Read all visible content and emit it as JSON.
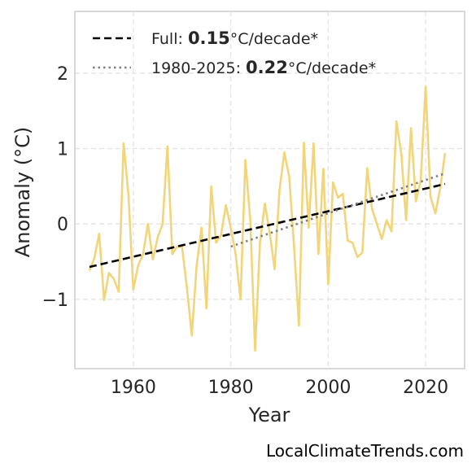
{
  "chart_data": {
    "type": "line",
    "xlabel": "Year",
    "ylabel": "Anomaly (°C)",
    "xlim": [
      1948,
      2028
    ],
    "ylim": [
      -1.92,
      2.82
    ],
    "xticks": [
      1960,
      1980,
      2000,
      2020
    ],
    "yticks": [
      -1,
      0,
      1,
      2
    ],
    "ytick_labels": [
      "−1",
      "0",
      "1",
      "2"
    ],
    "grid": true,
    "legend_placement": "top-left",
    "series": [
      {
        "kind": "data",
        "color": "#f2d57a",
        "x": [
          1951,
          1952,
          1953,
          1954,
          1955,
          1956,
          1957,
          1958,
          1959,
          1960,
          1961,
          1962,
          1963,
          1964,
          1965,
          1966,
          1967,
          1968,
          1969,
          1970,
          1971,
          1972,
          1973,
          1974,
          1975,
          1976,
          1977,
          1978,
          1979,
          1980,
          1981,
          1982,
          1983,
          1984,
          1985,
          1986,
          1987,
          1988,
          1989,
          1990,
          1991,
          1992,
          1993,
          1994,
          1995,
          1996,
          1997,
          1998,
          1999,
          2000,
          2001,
          2002,
          2003,
          2004,
          2005,
          2006,
          2007,
          2008,
          2009,
          2010,
          2011,
          2012,
          2013,
          2014,
          2015,
          2016,
          2017,
          2018,
          2019,
          2020,
          2021,
          2022,
          2023,
          2024
        ],
        "y": [
          -0.62,
          -0.45,
          -0.13,
          -1.01,
          -0.65,
          -0.73,
          -0.9,
          1.07,
          0.38,
          -0.87,
          -0.55,
          -0.4,
          0.0,
          -0.47,
          -0.18,
          0.0,
          1.03,
          -0.4,
          -0.3,
          -0.3,
          -0.85,
          -1.48,
          -0.55,
          -0.05,
          -1.12,
          0.5,
          -0.25,
          -0.15,
          0.25,
          -0.05,
          -0.4,
          -1.0,
          0.85,
          0.05,
          -1.68,
          -0.25,
          0.27,
          -0.12,
          -0.6,
          0.45,
          0.95,
          0.62,
          -0.3,
          -1.35,
          1.08,
          -0.05,
          1.07,
          -0.4,
          0.73,
          -0.8,
          0.55,
          0.35,
          0.4,
          -0.22,
          -0.25,
          -0.44,
          -0.38,
          0.74,
          0.2,
          0.0,
          -0.2,
          0.05,
          -0.1,
          1.36,
          0.93,
          0.05,
          1.27,
          0.3,
          0.58,
          1.82,
          0.36,
          0.14,
          0.48,
          0.94
        ]
      },
      {
        "kind": "trend",
        "color": "#000000",
        "dash": "dashed",
        "x": [
          1951,
          2024
        ],
        "y": [
          -0.57,
          0.53
        ]
      },
      {
        "kind": "trend",
        "color": "#808080",
        "dash": "dotted",
        "x": [
          1980,
          2024
        ],
        "y": [
          -0.3,
          0.67
        ]
      }
    ],
    "legend": [
      {
        "dash": "dashed",
        "color": "#000000",
        "prefix": "Full: ",
        "bold": "0.15",
        "suffix": "°C/decade*"
      },
      {
        "dash": "dotted",
        "color": "#808080",
        "prefix": "1980-2025: ",
        "bold": "0.22",
        "suffix": "°C/decade*"
      }
    ]
  },
  "credit": "LocalClimateTrends.com"
}
